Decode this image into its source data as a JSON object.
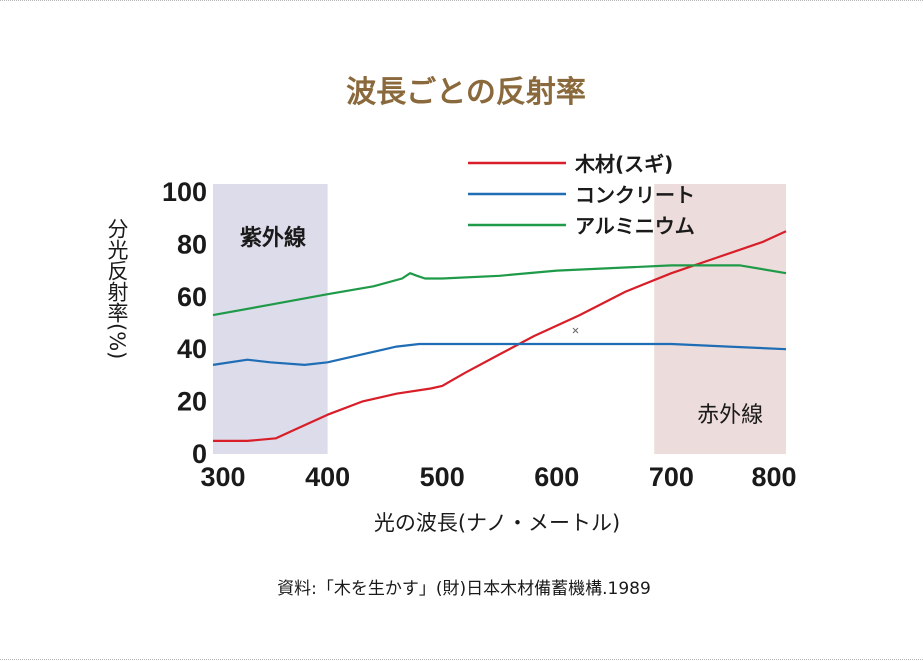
{
  "chart_data": {
    "type": "line",
    "title": "波長ごとの反射率",
    "xlabel": "光の波長(ナノ・メートル)",
    "ylabel": "分光反射率(%)",
    "xlim": [
      300,
      800
    ],
    "ylim": [
      0,
      100
    ],
    "xticks": [
      300,
      400,
      500,
      600,
      700,
      800
    ],
    "yticks": [
      0,
      20,
      40,
      60,
      80,
      100
    ],
    "grid": false,
    "legend_position": "top-right",
    "regions": [
      {
        "label": "紫外線",
        "x": [
          300,
          400
        ],
        "color": "#dcdcea"
      },
      {
        "label": "赤外線",
        "x": [
          685,
          800
        ],
        "color": "#ecdcdb"
      }
    ],
    "series": [
      {
        "name": "木材(スギ)",
        "color": "#d81e28",
        "x": [
          300,
          330,
          355,
          370,
          400,
          430,
          460,
          490,
          500,
          520,
          550,
          580,
          620,
          660,
          700,
          740,
          780,
          800
        ],
        "y": [
          5,
          5,
          6,
          9,
          15,
          20,
          23,
          25,
          26,
          31,
          38,
          45,
          53,
          62,
          69,
          75,
          81,
          85
        ]
      },
      {
        "name": "コンクリート",
        "color": "#1f6db5",
        "x": [
          300,
          330,
          350,
          380,
          400,
          430,
          460,
          480,
          500,
          550,
          600,
          650,
          700,
          750,
          800
        ],
        "y": [
          34,
          36,
          35,
          34,
          35,
          38,
          41,
          42,
          42,
          42,
          42,
          42,
          42,
          41,
          40
        ]
      },
      {
        "name": "アルミニウム",
        "color": "#1f9a48",
        "x": [
          300,
          350,
          400,
          440,
          465,
          472,
          478,
          485,
          500,
          550,
          600,
          650,
          700,
          720,
          760,
          800
        ],
        "y": [
          53,
          57,
          61,
          64,
          67,
          69,
          68,
          67,
          67,
          68,
          70,
          71,
          72,
          72,
          72,
          69
        ]
      }
    ]
  },
  "source_note": "資料:「木を生かす」(財)日本木材備蓄機構.1989"
}
